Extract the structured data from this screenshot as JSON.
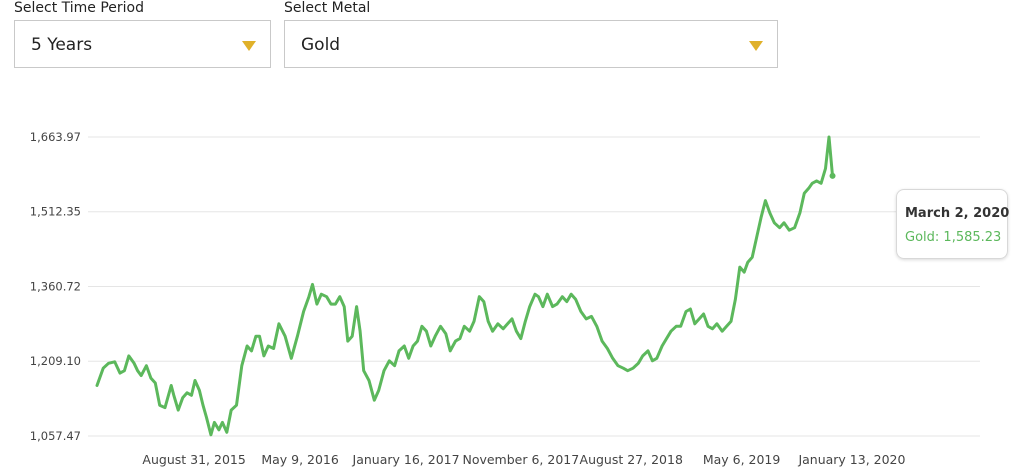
{
  "controls": {
    "time_period": {
      "label": "Select Time Period",
      "value": "5 Years"
    },
    "metal": {
      "label": "Select Metal",
      "value": "Gold"
    }
  },
  "colors": {
    "line": "#5cb85c",
    "caret": "#e0b12a",
    "grid": "#e5e5e5"
  },
  "icons": {
    "dropdown_caret": "caret-down-icon"
  },
  "tooltip": {
    "date": "March 2, 2020",
    "series": "Gold",
    "value": "1,585.23"
  },
  "chart_data": {
    "type": "line",
    "title": "",
    "xlabel": "",
    "ylabel": "",
    "grid": true,
    "ylim": [
      1057.47,
      1663.97
    ],
    "y_ticks": [
      1057.47,
      1209.1,
      1360.72,
      1512.35,
      1663.97
    ],
    "y_tick_labels": [
      "1,057.47",
      "1,209.10",
      "1,360.72",
      "1,512.35",
      "1,663.97"
    ],
    "x_tick_labels": [
      "August 31, 2015",
      "May 9, 2016",
      "January 16, 2017",
      "November 6, 2017",
      "August 27, 2018",
      "May 6, 2019",
      "January 13, 2020"
    ],
    "x_tick_positions": [
      0.11,
      0.23,
      0.35,
      0.48,
      0.605,
      0.73,
      0.855
    ],
    "series": [
      {
        "name": "Gold",
        "points": [
          [
            0.0,
            1160
          ],
          [
            0.007,
            1195
          ],
          [
            0.013,
            1205
          ],
          [
            0.02,
            1208
          ],
          [
            0.026,
            1185
          ],
          [
            0.031,
            1190
          ],
          [
            0.036,
            1220
          ],
          [
            0.042,
            1205
          ],
          [
            0.046,
            1190
          ],
          [
            0.05,
            1180
          ],
          [
            0.056,
            1200
          ],
          [
            0.061,
            1175
          ],
          [
            0.066,
            1165
          ],
          [
            0.071,
            1120
          ],
          [
            0.077,
            1115
          ],
          [
            0.084,
            1160
          ],
          [
            0.087,
            1140
          ],
          [
            0.092,
            1110
          ],
          [
            0.097,
            1135
          ],
          [
            0.102,
            1145
          ],
          [
            0.107,
            1140
          ],
          [
            0.111,
            1170
          ],
          [
            0.116,
            1150
          ],
          [
            0.12,
            1120
          ],
          [
            0.124,
            1095
          ],
          [
            0.129,
            1060
          ],
          [
            0.133,
            1085
          ],
          [
            0.138,
            1070
          ],
          [
            0.142,
            1085
          ],
          [
            0.147,
            1065
          ],
          [
            0.152,
            1110
          ],
          [
            0.158,
            1120
          ],
          [
            0.164,
            1200
          ],
          [
            0.17,
            1240
          ],
          [
            0.175,
            1230
          ],
          [
            0.18,
            1260
          ],
          [
            0.184,
            1260
          ],
          [
            0.189,
            1220
          ],
          [
            0.194,
            1240
          ],
          [
            0.2,
            1235
          ],
          [
            0.206,
            1285
          ],
          [
            0.213,
            1260
          ],
          [
            0.22,
            1215
          ],
          [
            0.227,
            1260
          ],
          [
            0.234,
            1310
          ],
          [
            0.24,
            1340
          ],
          [
            0.244,
            1365
          ],
          [
            0.249,
            1325
          ],
          [
            0.254,
            1345
          ],
          [
            0.26,
            1340
          ],
          [
            0.265,
            1325
          ],
          [
            0.27,
            1325
          ],
          [
            0.275,
            1340
          ],
          [
            0.28,
            1320
          ],
          [
            0.284,
            1250
          ],
          [
            0.289,
            1260
          ],
          [
            0.294,
            1320
          ],
          [
            0.298,
            1270
          ],
          [
            0.302,
            1190
          ],
          [
            0.308,
            1170
          ],
          [
            0.314,
            1130
          ],
          [
            0.319,
            1150
          ],
          [
            0.325,
            1190
          ],
          [
            0.331,
            1210
          ],
          [
            0.337,
            1200
          ],
          [
            0.342,
            1230
          ],
          [
            0.348,
            1240
          ],
          [
            0.353,
            1215
          ],
          [
            0.358,
            1240
          ],
          [
            0.363,
            1250
          ],
          [
            0.368,
            1280
          ],
          [
            0.373,
            1270
          ],
          [
            0.378,
            1240
          ],
          [
            0.383,
            1260
          ],
          [
            0.389,
            1280
          ],
          [
            0.395,
            1265
          ],
          [
            0.4,
            1230
          ],
          [
            0.406,
            1250
          ],
          [
            0.411,
            1255
          ],
          [
            0.416,
            1280
          ],
          [
            0.422,
            1270
          ],
          [
            0.427,
            1290
          ],
          [
            0.433,
            1340
          ],
          [
            0.438,
            1330
          ],
          [
            0.443,
            1290
          ],
          [
            0.448,
            1270
          ],
          [
            0.454,
            1285
          ],
          [
            0.46,
            1275
          ],
          [
            0.465,
            1285
          ],
          [
            0.47,
            1295
          ],
          [
            0.475,
            1270
          ],
          [
            0.48,
            1255
          ],
          [
            0.485,
            1290
          ],
          [
            0.49,
            1320
          ],
          [
            0.496,
            1345
          ],
          [
            0.5,
            1340
          ],
          [
            0.505,
            1320
          ],
          [
            0.51,
            1345
          ],
          [
            0.516,
            1320
          ],
          [
            0.521,
            1325
          ],
          [
            0.527,
            1340
          ],
          [
            0.532,
            1330
          ],
          [
            0.537,
            1345
          ],
          [
            0.542,
            1335
          ],
          [
            0.548,
            1310
          ],
          [
            0.554,
            1295
          ],
          [
            0.56,
            1300
          ],
          [
            0.566,
            1280
          ],
          [
            0.572,
            1250
          ],
          [
            0.578,
            1235
          ],
          [
            0.584,
            1215
          ],
          [
            0.59,
            1200
          ],
          [
            0.596,
            1195
          ],
          [
            0.601,
            1190
          ],
          [
            0.607,
            1195
          ],
          [
            0.613,
            1205
          ],
          [
            0.618,
            1220
          ],
          [
            0.624,
            1230
          ],
          [
            0.629,
            1210
          ],
          [
            0.634,
            1215
          ],
          [
            0.64,
            1240
          ],
          [
            0.645,
            1255
          ],
          [
            0.65,
            1270
          ],
          [
            0.656,
            1280
          ],
          [
            0.661,
            1280
          ],
          [
            0.667,
            1310
          ],
          [
            0.672,
            1315
          ],
          [
            0.677,
            1285
          ],
          [
            0.682,
            1295
          ],
          [
            0.687,
            1305
          ],
          [
            0.692,
            1280
          ],
          [
            0.697,
            1275
          ],
          [
            0.702,
            1285
          ],
          [
            0.708,
            1270
          ],
          [
            0.713,
            1280
          ],
          [
            0.718,
            1290
          ],
          [
            0.723,
            1335
          ],
          [
            0.728,
            1400
          ],
          [
            0.733,
            1390
          ],
          [
            0.737,
            1410
          ],
          [
            0.742,
            1420
          ],
          [
            0.747,
            1460
          ],
          [
            0.752,
            1500
          ],
          [
            0.757,
            1535
          ],
          [
            0.762,
            1510
          ],
          [
            0.767,
            1490
          ],
          [
            0.773,
            1480
          ],
          [
            0.778,
            1490
          ],
          [
            0.784,
            1475
          ],
          [
            0.79,
            1480
          ],
          [
            0.796,
            1510
          ],
          [
            0.801,
            1550
          ],
          [
            0.806,
            1560
          ],
          [
            0.81,
            1570
          ],
          [
            0.815,
            1575
          ],
          [
            0.82,
            1570
          ],
          [
            0.825,
            1600
          ],
          [
            0.829,
            1663.97
          ],
          [
            0.833,
            1585.23
          ]
        ]
      }
    ]
  }
}
